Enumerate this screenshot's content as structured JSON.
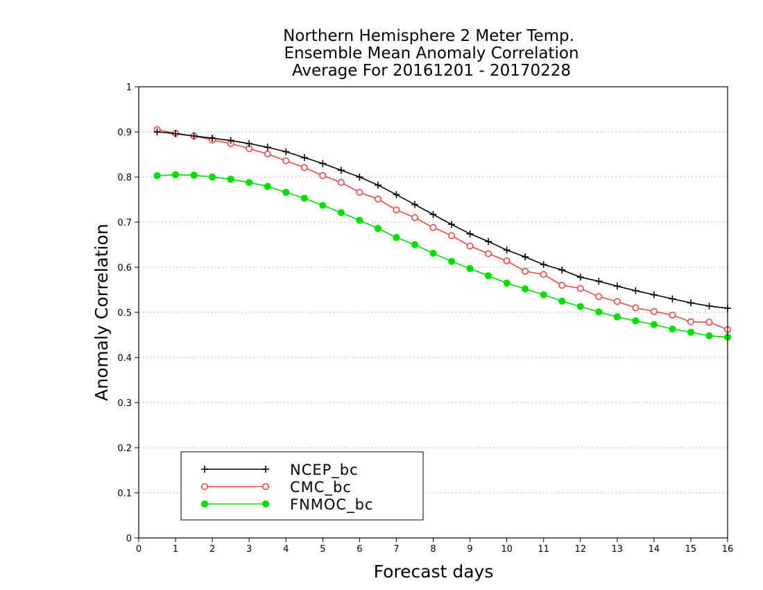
{
  "chart_data": {
    "type": "line",
    "title_lines": [
      "Northern Hemisphere 2 Meter Temp.",
      "Ensemble Mean Anomaly Correlation",
      "Average For 20161201 - 20170228"
    ],
    "xlabel": "Forecast days",
    "ylabel": "Anomaly Correlation",
    "xlim": [
      0,
      16
    ],
    "ylim": [
      0,
      1
    ],
    "x_ticks": [
      0,
      1,
      2,
      3,
      4,
      5,
      6,
      7,
      8,
      9,
      10,
      11,
      12,
      13,
      14,
      15,
      16
    ],
    "y_ticks": [
      "0",
      "0.1",
      "0.2",
      "0.3",
      "0.4",
      "0.5",
      "0.6",
      "0.7",
      "0.8",
      "0.9",
      "1"
    ],
    "grid": "horizontal dotted",
    "legend_position": "bottom-left",
    "x": [
      0.5,
      1,
      1.5,
      2,
      2.5,
      3,
      3.5,
      4,
      4.5,
      5,
      5.5,
      6,
      6.5,
      7,
      7.5,
      8,
      8.5,
      9,
      9.5,
      10,
      10.5,
      11,
      11.5,
      12,
      12.5,
      13,
      13.5,
      14,
      14.5,
      15,
      15.5,
      16
    ],
    "series": [
      {
        "name": "NCEP_bc",
        "color": "#000000",
        "marker": "plus",
        "values": [
          0.9,
          0.896,
          0.891,
          0.886,
          0.881,
          0.874,
          0.866,
          0.856,
          0.843,
          0.83,
          0.815,
          0.8,
          0.782,
          0.761,
          0.739,
          0.717,
          0.695,
          0.674,
          0.657,
          0.638,
          0.623,
          0.606,
          0.594,
          0.578,
          0.569,
          0.558,
          0.548,
          0.539,
          0.53,
          0.521,
          0.514,
          0.509
        ]
      },
      {
        "name": "CMC_bc",
        "color": "#e84848",
        "marker": "open-circle",
        "values": [
          0.905,
          0.897,
          0.891,
          0.882,
          0.874,
          0.863,
          0.851,
          0.836,
          0.821,
          0.803,
          0.788,
          0.766,
          0.751,
          0.727,
          0.71,
          0.688,
          0.67,
          0.647,
          0.63,
          0.614,
          0.591,
          0.584,
          0.56,
          0.553,
          0.535,
          0.524,
          0.51,
          0.502,
          0.494,
          0.479,
          0.478,
          0.462
        ]
      },
      {
        "name": "FNMOC_bc",
        "color": "#00dd00",
        "marker": "filled-circle",
        "values": [
          0.803,
          0.805,
          0.804,
          0.8,
          0.795,
          0.788,
          0.779,
          0.766,
          0.753,
          0.737,
          0.721,
          0.704,
          0.686,
          0.666,
          0.65,
          0.631,
          0.613,
          0.597,
          0.581,
          0.565,
          0.552,
          0.539,
          0.525,
          0.513,
          0.501,
          0.49,
          0.481,
          0.473,
          0.463,
          0.456,
          0.448,
          0.445
        ]
      }
    ]
  }
}
